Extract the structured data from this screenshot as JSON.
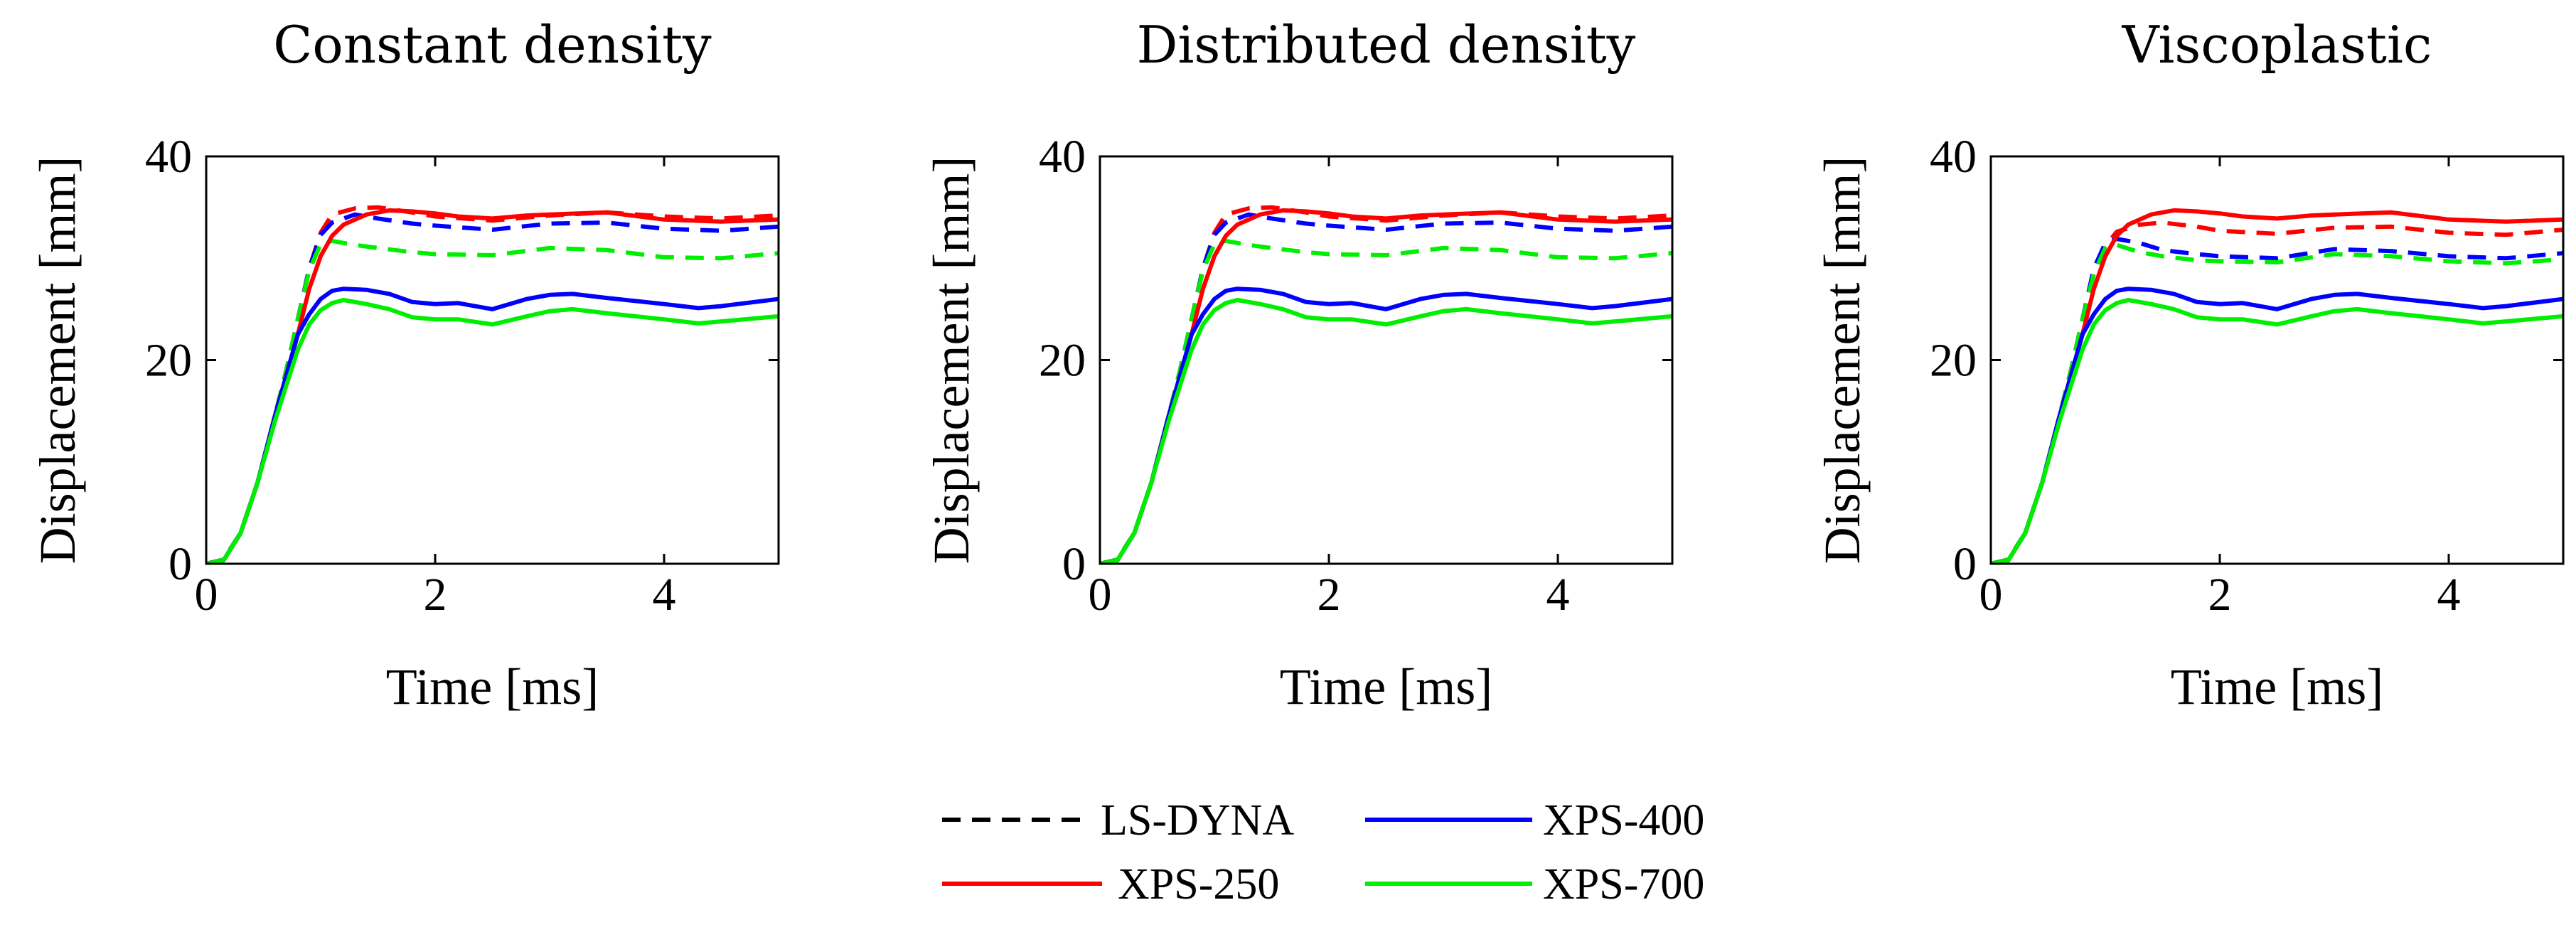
{
  "colors": {
    "lsdyna": "#000000",
    "xps250": "#ff0000",
    "xps400": "#0000ff",
    "xps700": "#00ee00"
  },
  "legend": {
    "items": [
      {
        "key": "lsdyna",
        "label": "LS-DYNA",
        "style": "dashed"
      },
      {
        "key": "xps400",
        "label": "XPS-400",
        "style": "solid"
      },
      {
        "key": "xps250",
        "label": "XPS-250",
        "style": "solid"
      },
      {
        "key": "xps700",
        "label": "XPS-700",
        "style": "solid"
      }
    ]
  },
  "chart_data": [
    {
      "type": "line",
      "title": "Constant density",
      "xlabel": "Time [ms]",
      "ylabel": "Displacement [mm]",
      "xlim": [
        0,
        5
      ],
      "ylim": [
        0,
        40
      ],
      "xticks": [
        "0",
        "2",
        "4"
      ],
      "yticks": [
        "0",
        "20",
        "40"
      ],
      "series": [
        {
          "name": "XPS-250 LS-DYNA",
          "color_key": "xps250",
          "dashed": true,
          "x": [
            0,
            0.15,
            0.3,
            0.45,
            0.6,
            0.7,
            0.8,
            0.9,
            1.0,
            1.1,
            1.3,
            1.5,
            1.8,
            2.0,
            2.5,
            3.0,
            3.5,
            4.0,
            4.5,
            5.0
          ],
          "y": [
            0,
            0.4,
            3,
            8,
            14.5,
            19,
            24,
            29,
            32.5,
            34.3,
            34.9,
            35,
            34.5,
            34.1,
            33.7,
            34.2,
            34.5,
            34.1,
            33.9,
            34.2
          ]
        },
        {
          "name": "XPS-400 LS-DYNA",
          "color_key": "xps400",
          "dashed": true,
          "x": [
            0,
            0.15,
            0.3,
            0.45,
            0.6,
            0.7,
            0.8,
            0.9,
            1.0,
            1.1,
            1.3,
            1.5,
            1.8,
            2.0,
            2.5,
            3.0,
            3.5,
            4.0,
            4.5,
            5.0
          ],
          "y": [
            0,
            0.4,
            3,
            8,
            14.5,
            19,
            24,
            29,
            32.3,
            33.5,
            34.3,
            33.9,
            33.4,
            33.2,
            32.8,
            33.4,
            33.5,
            32.9,
            32.7,
            33.1
          ]
        },
        {
          "name": "XPS-700 LS-DYNA",
          "color_key": "xps700",
          "dashed": true,
          "x": [
            0,
            0.15,
            0.3,
            0.45,
            0.6,
            0.7,
            0.8,
            0.9,
            1.0,
            1.1,
            1.3,
            1.5,
            1.8,
            2.0,
            2.5,
            3.0,
            3.5,
            4.0,
            4.5,
            5.0
          ],
          "y": [
            0,
            0.4,
            3,
            8,
            14.5,
            19,
            24,
            28.8,
            31.4,
            31.7,
            31.3,
            31.0,
            30.6,
            30.4,
            30.3,
            31.0,
            30.8,
            30.1,
            30.0,
            30.5
          ]
        },
        {
          "name": "XPS-250",
          "color_key": "xps250",
          "dashed": false,
          "x": [
            0,
            0.15,
            0.3,
            0.45,
            0.6,
            0.7,
            0.8,
            0.9,
            1.0,
            1.1,
            1.2,
            1.4,
            1.6,
            1.8,
            2.0,
            2.2,
            2.5,
            2.8,
            3.0,
            3.5,
            4.0,
            4.5,
            5.0
          ],
          "y": [
            0,
            0.3,
            3,
            8,
            14.5,
            18.5,
            22.5,
            27,
            30.2,
            32.2,
            33.3,
            34.3,
            34.7,
            34.6,
            34.4,
            34.1,
            33.9,
            34.2,
            34.3,
            34.5,
            33.8,
            33.6,
            33.8
          ]
        },
        {
          "name": "XPS-400",
          "color_key": "xps400",
          "dashed": false,
          "x": [
            0,
            0.15,
            0.3,
            0.45,
            0.6,
            0.7,
            0.8,
            0.9,
            1.0,
            1.1,
            1.2,
            1.4,
            1.6,
            1.8,
            2.0,
            2.2,
            2.5,
            2.8,
            3.0,
            3.2,
            3.5,
            4.0,
            4.3,
            4.5,
            5.0
          ],
          "y": [
            0,
            0.3,
            3,
            8,
            14.5,
            18.5,
            22.5,
            24.5,
            26,
            26.8,
            27,
            26.9,
            26.5,
            25.7,
            25.5,
            25.6,
            25.0,
            26.0,
            26.4,
            26.5,
            26.1,
            25.5,
            25.1,
            25.3,
            26.0
          ]
        },
        {
          "name": "XPS-700",
          "color_key": "xps700",
          "dashed": false,
          "x": [
            0,
            0.15,
            0.3,
            0.45,
            0.6,
            0.7,
            0.8,
            0.9,
            1.0,
            1.1,
            1.2,
            1.4,
            1.6,
            1.8,
            2.0,
            2.2,
            2.5,
            2.8,
            3.0,
            3.2,
            3.5,
            4.0,
            4.3,
            4.5,
            5.0
          ],
          "y": [
            0,
            0.3,
            3,
            8,
            14,
            17.5,
            21,
            23.5,
            24.9,
            25.6,
            25.9,
            25.5,
            25.0,
            24.2,
            24.0,
            24.0,
            23.5,
            24.3,
            24.8,
            25.0,
            24.6,
            24.0,
            23.6,
            23.8,
            24.3
          ]
        }
      ]
    },
    {
      "type": "line",
      "title": "Distributed density",
      "xlabel": "Time [ms]",
      "ylabel": "Displacement [mm]",
      "xlim": [
        0,
        5
      ],
      "ylim": [
        0,
        40
      ],
      "xticks": [
        "0",
        "2",
        "4"
      ],
      "yticks": [
        "0",
        "20",
        "40"
      ],
      "series": [
        {
          "name": "XPS-250 LS-DYNA",
          "color_key": "xps250",
          "dashed": true,
          "x": [
            0,
            0.15,
            0.3,
            0.45,
            0.6,
            0.7,
            0.8,
            0.9,
            1.0,
            1.1,
            1.3,
            1.5,
            1.8,
            2.0,
            2.5,
            3.0,
            3.5,
            4.0,
            4.5,
            5.0
          ],
          "y": [
            0,
            0.4,
            3,
            8,
            14.5,
            19,
            24,
            29,
            32.5,
            34.3,
            34.9,
            35,
            34.5,
            34.1,
            33.7,
            34.2,
            34.5,
            34.1,
            33.9,
            34.2
          ]
        },
        {
          "name": "XPS-400 LS-DYNA",
          "color_key": "xps400",
          "dashed": true,
          "x": [
            0,
            0.15,
            0.3,
            0.45,
            0.6,
            0.7,
            0.8,
            0.9,
            1.0,
            1.1,
            1.3,
            1.5,
            1.8,
            2.0,
            2.5,
            3.0,
            3.5,
            4.0,
            4.5,
            5.0
          ],
          "y": [
            0,
            0.4,
            3,
            8,
            14.5,
            19,
            24,
            29,
            32.3,
            33.5,
            34.3,
            33.9,
            33.4,
            33.2,
            32.8,
            33.4,
            33.5,
            32.9,
            32.7,
            33.1
          ]
        },
        {
          "name": "XPS-700 LS-DYNA",
          "color_key": "xps700",
          "dashed": true,
          "x": [
            0,
            0.15,
            0.3,
            0.45,
            0.6,
            0.7,
            0.8,
            0.9,
            1.0,
            1.1,
            1.3,
            1.5,
            1.8,
            2.0,
            2.5,
            3.0,
            3.5,
            4.0,
            4.5,
            5.0
          ],
          "y": [
            0,
            0.4,
            3,
            8,
            14.5,
            19,
            24,
            28.8,
            31.4,
            31.7,
            31.3,
            31.0,
            30.6,
            30.4,
            30.3,
            31.0,
            30.8,
            30.1,
            30.0,
            30.5
          ]
        },
        {
          "name": "XPS-250",
          "color_key": "xps250",
          "dashed": false,
          "x": [
            0,
            0.15,
            0.3,
            0.45,
            0.6,
            0.7,
            0.8,
            0.9,
            1.0,
            1.1,
            1.2,
            1.4,
            1.6,
            1.8,
            2.0,
            2.2,
            2.5,
            2.8,
            3.0,
            3.5,
            4.0,
            4.5,
            5.0
          ],
          "y": [
            0,
            0.3,
            3,
            8,
            14.5,
            18.5,
            22.5,
            27,
            30.2,
            32.2,
            33.3,
            34.3,
            34.7,
            34.6,
            34.4,
            34.1,
            33.9,
            34.2,
            34.3,
            34.5,
            33.8,
            33.6,
            33.8
          ]
        },
        {
          "name": "XPS-400",
          "color_key": "xps400",
          "dashed": false,
          "x": [
            0,
            0.15,
            0.3,
            0.45,
            0.6,
            0.7,
            0.8,
            0.9,
            1.0,
            1.1,
            1.2,
            1.4,
            1.6,
            1.8,
            2.0,
            2.2,
            2.5,
            2.8,
            3.0,
            3.2,
            3.5,
            4.0,
            4.3,
            4.5,
            5.0
          ],
          "y": [
            0,
            0.3,
            3,
            8,
            14.5,
            18.5,
            22.5,
            24.5,
            26,
            26.8,
            27,
            26.9,
            26.5,
            25.7,
            25.5,
            25.6,
            25.0,
            26.0,
            26.4,
            26.5,
            26.1,
            25.5,
            25.1,
            25.3,
            26.0
          ]
        },
        {
          "name": "XPS-700",
          "color_key": "xps700",
          "dashed": false,
          "x": [
            0,
            0.15,
            0.3,
            0.45,
            0.6,
            0.7,
            0.8,
            0.9,
            1.0,
            1.1,
            1.2,
            1.4,
            1.6,
            1.8,
            2.0,
            2.2,
            2.5,
            2.8,
            3.0,
            3.2,
            3.5,
            4.0,
            4.3,
            4.5,
            5.0
          ],
          "y": [
            0,
            0.3,
            3,
            8,
            14,
            17.5,
            21,
            23.5,
            24.9,
            25.6,
            25.9,
            25.5,
            25.0,
            24.2,
            24.0,
            24.0,
            23.5,
            24.3,
            24.8,
            25.0,
            24.6,
            24.0,
            23.6,
            23.8,
            24.3
          ]
        }
      ]
    },
    {
      "type": "line",
      "title": "Viscoplastic",
      "xlabel": "Time [ms]",
      "ylabel": "Displacement [mm]",
      "xlim": [
        0,
        5
      ],
      "ylim": [
        0,
        40
      ],
      "xticks": [
        "0",
        "2",
        "4"
      ],
      "yticks": [
        "0",
        "20",
        "40"
      ],
      "series": [
        {
          "name": "XPS-250 LS-DYNA",
          "color_key": "xps250",
          "dashed": true,
          "x": [
            0,
            0.15,
            0.3,
            0.45,
            0.6,
            0.7,
            0.8,
            0.9,
            1.0,
            1.1,
            1.3,
            1.5,
            1.8,
            2.0,
            2.5,
            3.0,
            3.5,
            4.0,
            4.5,
            5.0
          ],
          "y": [
            0,
            0.4,
            3,
            8,
            14.5,
            19,
            24,
            28.5,
            31.2,
            32.6,
            33.3,
            33.5,
            33.1,
            32.7,
            32.4,
            33.0,
            33.1,
            32.5,
            32.3,
            32.8
          ]
        },
        {
          "name": "XPS-400 LS-DYNA",
          "color_key": "xps400",
          "dashed": true,
          "x": [
            0,
            0.15,
            0.3,
            0.45,
            0.6,
            0.7,
            0.8,
            0.9,
            1.0,
            1.1,
            1.3,
            1.5,
            1.8,
            2.0,
            2.5,
            3.0,
            3.5,
            4.0,
            4.5,
            5.0
          ],
          "y": [
            0,
            0.4,
            3,
            8,
            14.5,
            19,
            24,
            29,
            31.5,
            31.9,
            31.5,
            30.8,
            30.4,
            30.2,
            30.0,
            30.9,
            30.7,
            30.2,
            30.0,
            30.5
          ]
        },
        {
          "name": "XPS-700 LS-DYNA",
          "color_key": "xps700",
          "dashed": true,
          "x": [
            0,
            0.15,
            0.3,
            0.45,
            0.6,
            0.7,
            0.8,
            0.9,
            1.0,
            1.1,
            1.3,
            1.5,
            1.8,
            2.0,
            2.5,
            3.0,
            3.5,
            4.0,
            4.5,
            5.0
          ],
          "y": [
            0,
            0.4,
            3,
            8,
            14.5,
            19,
            24,
            28.5,
            31.0,
            31.3,
            30.6,
            30.2,
            29.8,
            29.7,
            29.6,
            30.4,
            30.2,
            29.7,
            29.5,
            29.9
          ]
        },
        {
          "name": "XPS-250",
          "color_key": "xps250",
          "dashed": false,
          "x": [
            0,
            0.15,
            0.3,
            0.45,
            0.6,
            0.7,
            0.8,
            0.9,
            1.0,
            1.1,
            1.2,
            1.4,
            1.6,
            1.8,
            2.0,
            2.2,
            2.5,
            2.8,
            3.0,
            3.5,
            4.0,
            4.5,
            5.0
          ],
          "y": [
            0,
            0.3,
            3,
            8,
            14.5,
            18.5,
            22.5,
            27,
            30.2,
            32.2,
            33.3,
            34.3,
            34.7,
            34.6,
            34.4,
            34.1,
            33.9,
            34.2,
            34.3,
            34.5,
            33.8,
            33.6,
            33.8
          ]
        },
        {
          "name": "XPS-400",
          "color_key": "xps400",
          "dashed": false,
          "x": [
            0,
            0.15,
            0.3,
            0.45,
            0.6,
            0.7,
            0.8,
            0.9,
            1.0,
            1.1,
            1.2,
            1.4,
            1.6,
            1.8,
            2.0,
            2.2,
            2.5,
            2.8,
            3.0,
            3.2,
            3.5,
            4.0,
            4.3,
            4.5,
            5.0
          ],
          "y": [
            0,
            0.3,
            3,
            8,
            14.5,
            18.5,
            22.5,
            24.5,
            26,
            26.8,
            27,
            26.9,
            26.5,
            25.7,
            25.5,
            25.6,
            25.0,
            26.0,
            26.4,
            26.5,
            26.1,
            25.5,
            25.1,
            25.3,
            26.0
          ]
        },
        {
          "name": "XPS-700",
          "color_key": "xps700",
          "dashed": false,
          "x": [
            0,
            0.15,
            0.3,
            0.45,
            0.6,
            0.7,
            0.8,
            0.9,
            1.0,
            1.1,
            1.2,
            1.4,
            1.6,
            1.8,
            2.0,
            2.2,
            2.5,
            2.8,
            3.0,
            3.2,
            3.5,
            4.0,
            4.3,
            4.5,
            5.0
          ],
          "y": [
            0,
            0.3,
            3,
            8,
            14,
            17.5,
            21,
            23.5,
            24.9,
            25.6,
            25.9,
            25.5,
            25.0,
            24.2,
            24.0,
            24.0,
            23.5,
            24.3,
            24.8,
            25.0,
            24.6,
            24.0,
            23.6,
            23.8,
            24.3
          ]
        }
      ]
    }
  ]
}
